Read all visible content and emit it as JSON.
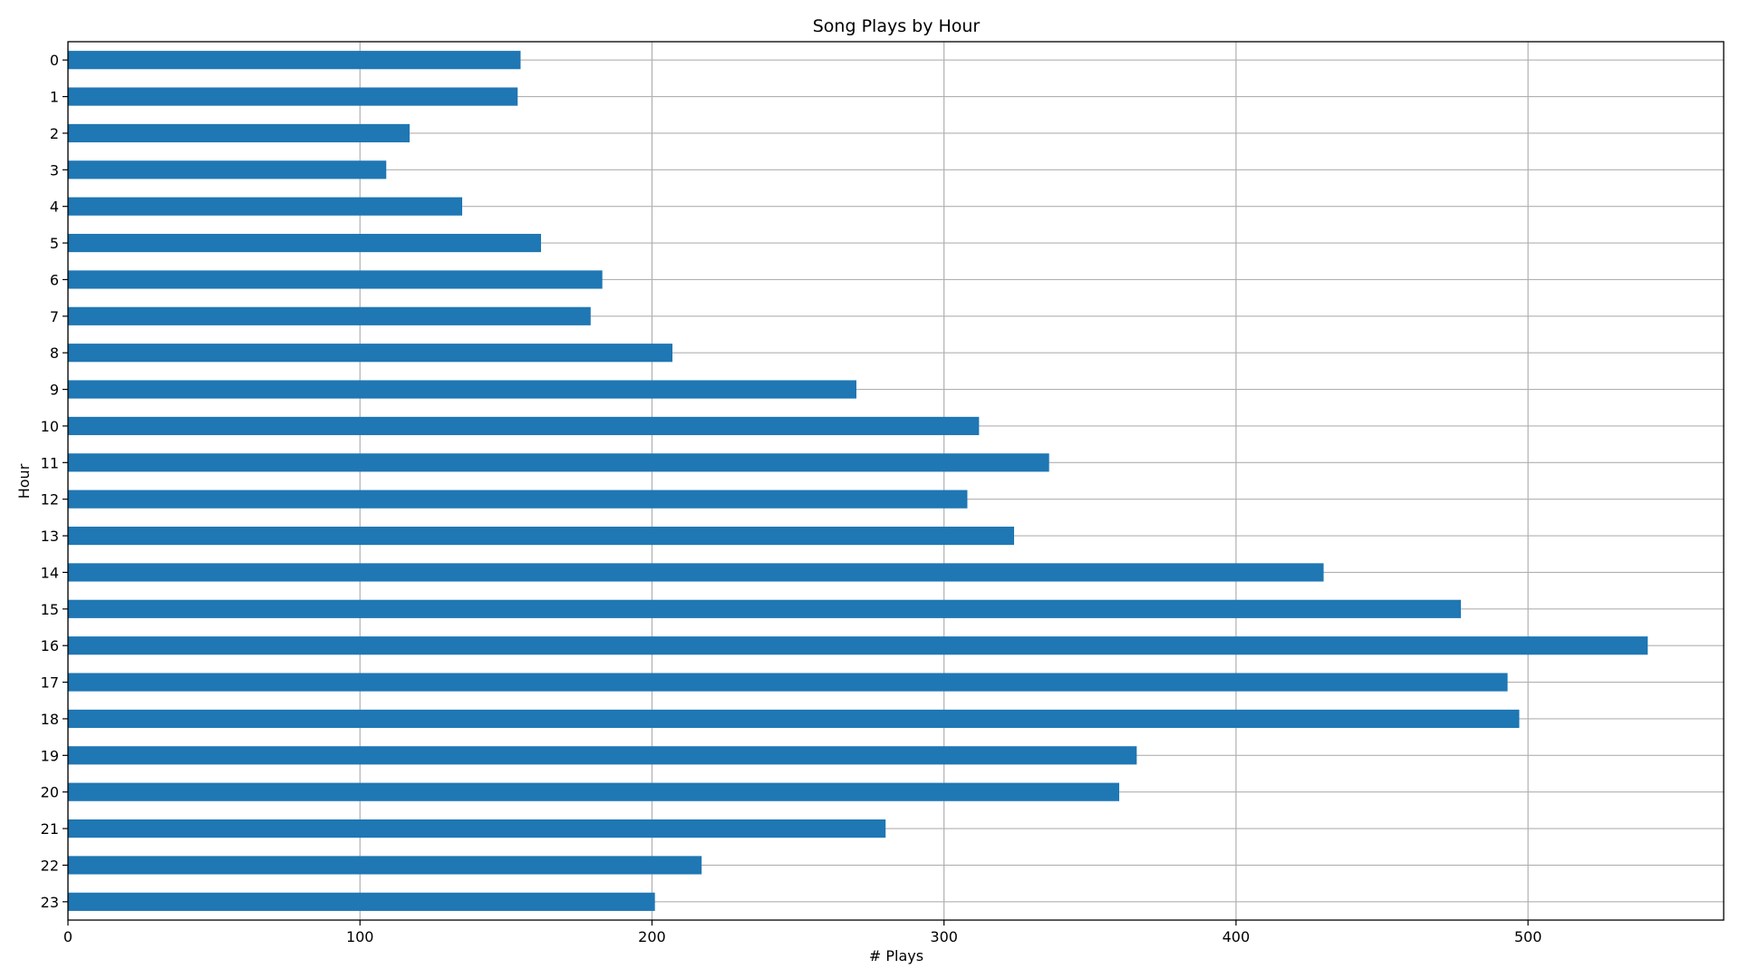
{
  "chart_data": {
    "type": "bar",
    "orientation": "horizontal",
    "title": "Song Plays by Hour",
    "xlabel": "# Plays",
    "ylabel": "Hour",
    "categories": [
      "0",
      "1",
      "2",
      "3",
      "4",
      "5",
      "6",
      "7",
      "8",
      "9",
      "10",
      "11",
      "12",
      "13",
      "14",
      "15",
      "16",
      "17",
      "18",
      "19",
      "20",
      "21",
      "22",
      "23"
    ],
    "values": [
      155,
      154,
      117,
      109,
      135,
      162,
      183,
      179,
      207,
      270,
      312,
      336,
      308,
      324,
      430,
      477,
      541,
      493,
      497,
      366,
      360,
      280,
      217,
      201
    ],
    "xlim": [
      0,
      567
    ],
    "xticks": [
      0,
      100,
      200,
      300,
      400,
      500
    ],
    "grid": true,
    "bar_color": "#1f77b4"
  }
}
